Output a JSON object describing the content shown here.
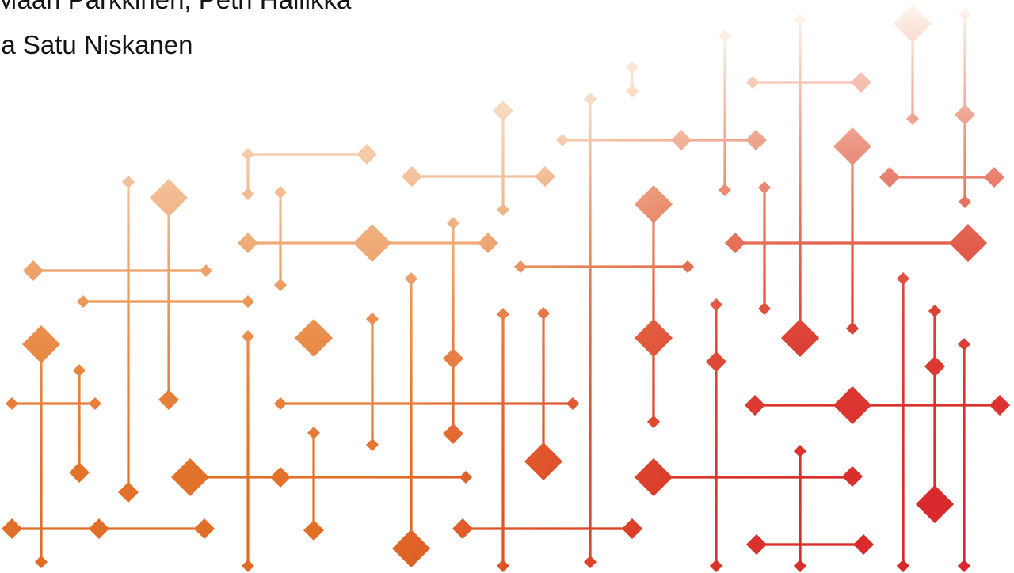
{
  "authors": [
    "Maari Parkkinen, Petri Hällikkä",
    "ja Satu Niskanen"
  ]
}
